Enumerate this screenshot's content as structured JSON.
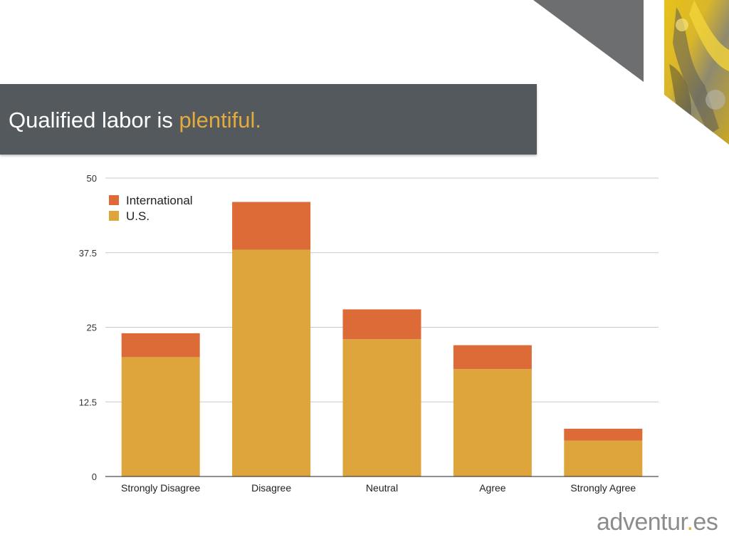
{
  "slide": {
    "title_plain": "Qualified labor is ",
    "title_accent": "plentiful."
  },
  "logo": {
    "part1": "adventur",
    "dot": ".",
    "part2": "es"
  },
  "colors": {
    "title_bar": "#54595e",
    "accent": "#e3ab3c",
    "us": "#dea53c",
    "international": "#dc6b37",
    "corner_triangle": "#6d6e70"
  },
  "chart_data": {
    "type": "bar",
    "stacked": true,
    "title": "",
    "xlabel": "",
    "ylabel": "",
    "categories": [
      "Strongly Disagree",
      "Disagree",
      "Neutral",
      "Agree",
      "Strongly Agree"
    ],
    "series": [
      {
        "name": "U.S.",
        "color": "#dea53c",
        "values": [
          20,
          38,
          23,
          18,
          6
        ]
      },
      {
        "name": "International",
        "color": "#dc6b37",
        "values": [
          4,
          8,
          5,
          4,
          2
        ]
      }
    ],
    "legend_order": [
      "International",
      "U.S."
    ],
    "legend_position": "top-left",
    "ylim": [
      0,
      50
    ],
    "yticks": [
      0,
      12.5,
      25,
      37.5,
      50
    ],
    "ytick_labels": [
      "0",
      "12.5",
      "25",
      "37.5",
      "50"
    ],
    "grid": true
  }
}
